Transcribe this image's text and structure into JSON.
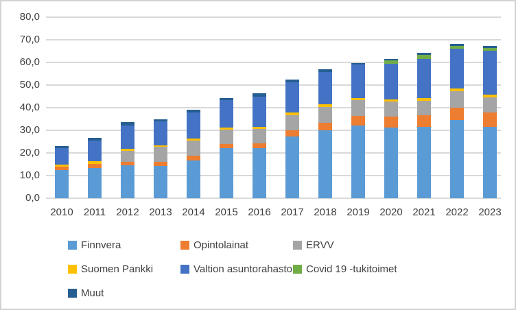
{
  "chart_data": {
    "type": "bar",
    "stacked": true,
    "title": "",
    "xlabel": "",
    "ylabel": "",
    "grid": true,
    "gridline_color": "#d9d9d9",
    "legend_position": "bottom",
    "ylim": [
      0,
      80
    ],
    "ytick_step": 10,
    "yticks": [
      "0,0",
      "10,0",
      "20,0",
      "30,0",
      "40,0",
      "50,0",
      "60,0",
      "70,0",
      "80,0"
    ],
    "categories": [
      "2010",
      "2011",
      "2012",
      "2013",
      "2014",
      "2015",
      "2016",
      "2017",
      "2018",
      "2019",
      "2020",
      "2021",
      "2022",
      "2023"
    ],
    "series": [
      {
        "name": "Finnvera",
        "color": "#5B9BD5",
        "values": [
          12.3,
          13.3,
          14.5,
          14.3,
          16.8,
          22.1,
          22.1,
          27.2,
          29.9,
          32.0,
          31.2,
          31.6,
          34.6,
          31.4
        ]
      },
      {
        "name": "Opintolainat",
        "color": "#ED7D31",
        "values": [
          1.5,
          1.9,
          1.6,
          1.8,
          2.0,
          1.7,
          2.2,
          2.7,
          3.3,
          4.3,
          4.9,
          5.1,
          5.6,
          6.3
        ]
      },
      {
        "name": "ERVV",
        "color": "#A5A5A5",
        "values": [
          0,
          0,
          4.8,
          6.6,
          6.7,
          6.5,
          6.3,
          6.8,
          6.9,
          6.9,
          6.6,
          6.4,
          7.4,
          6.6
        ]
      },
      {
        "name": "Suomen Pankki",
        "color": "#FFC000",
        "values": [
          1.0,
          1.1,
          1.0,
          0.7,
          0.9,
          0.8,
          0.8,
          1.2,
          1.1,
          1.0,
          1.0,
          1.3,
          1.2,
          1.2
        ]
      },
      {
        "name": "Valtion asuntorahasto",
        "color": "#4472C4",
        "values": [
          7.4,
          9.1,
          10.3,
          10.6,
          11.4,
          12.1,
          13.3,
          13.3,
          14.3,
          14.8,
          15.8,
          17.3,
          17.5,
          19.3
        ]
      },
      {
        "name": "Covid 19 -tukitoimet",
        "color": "#70AD47",
        "values": [
          0,
          0,
          0,
          0,
          0,
          0,
          0,
          0,
          0,
          0,
          1.4,
          1.8,
          1.3,
          1.2
        ]
      },
      {
        "name": "Muut",
        "color": "#255E91",
        "values": [
          0.8,
          1.2,
          1.4,
          1.0,
          1.1,
          1.0,
          1.5,
          1.2,
          1.2,
          0.7,
          0.6,
          0.8,
          0.9,
          1.0
        ]
      }
    ],
    "totals": [
      23.0,
      26.6,
      33.6,
      35.0,
      38.9,
      44.2,
      46.2,
      52.4,
      56.7,
      59.7,
      61.5,
      64.3,
      68.5,
      67.0
    ]
  }
}
